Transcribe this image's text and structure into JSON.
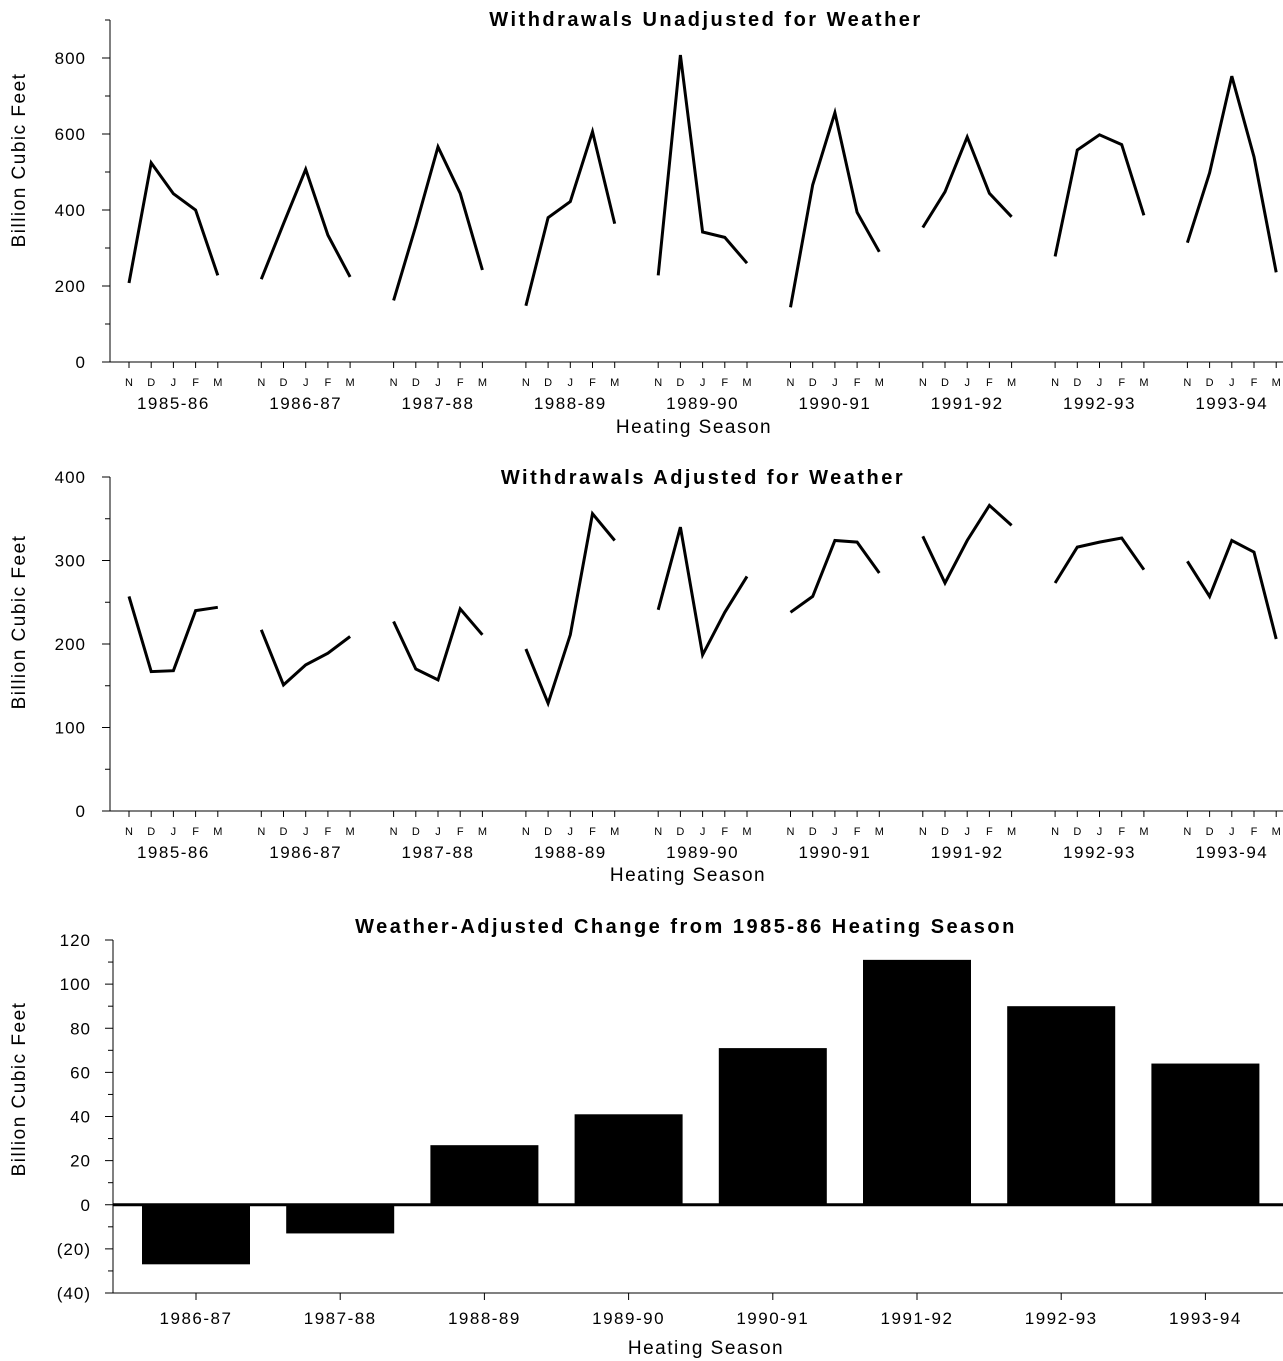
{
  "chart_data": [
    {
      "type": "line",
      "title": "Withdrawals Unadjusted for Weather",
      "xlabel": "Heating Season",
      "ylabel": "Billion Cubic Feet",
      "ylim": [
        0,
        900
      ],
      "yticks": [
        0,
        200,
        400,
        600,
        800
      ],
      "months": [
        "N",
        "D",
        "J",
        "F",
        "M"
      ],
      "seasons": [
        "1985-86",
        "1986-87",
        "1987-88",
        "1988-89",
        "1989-90",
        "1990-91",
        "1991-92",
        "1992-93",
        "1993-94"
      ],
      "series": [
        {
          "season": "1985-86",
          "values": [
            208,
            524,
            443,
            400,
            228
          ]
        },
        {
          "season": "1986-87",
          "values": [
            218,
            364,
            507,
            334,
            224
          ]
        },
        {
          "season": "1987-88",
          "values": [
            162,
            358,
            566,
            444,
            242
          ]
        },
        {
          "season": "1988-89",
          "values": [
            148,
            380,
            422,
            606,
            364
          ]
        },
        {
          "season": "1989-90",
          "values": [
            228,
            808,
            342,
            328,
            260
          ]
        },
        {
          "season": "1990-91",
          "values": [
            144,
            466,
            656,
            394,
            290
          ]
        },
        {
          "season": "1991-92",
          "values": [
            354,
            448,
            592,
            444,
            382
          ]
        },
        {
          "season": "1992-93",
          "values": [
            278,
            558,
            598,
            572,
            386
          ]
        },
        {
          "season": "1993-94",
          "values": [
            314,
            498,
            752,
            540,
            236
          ]
        }
      ]
    },
    {
      "type": "line",
      "title": "Withdrawals Adjusted for Weather",
      "xlabel": "Heating Season",
      "ylabel": "Billion Cubic Feet",
      "ylim": [
        0,
        400
      ],
      "yticks": [
        0,
        100,
        200,
        300,
        400
      ],
      "months": [
        "N",
        "D",
        "J",
        "F",
        "M"
      ],
      "seasons": [
        "1985-86",
        "1986-87",
        "1987-88",
        "1988-89",
        "1989-90",
        "1990-91",
        "1991-92",
        "1992-93",
        "1993-94"
      ],
      "series": [
        {
          "season": "1985-86",
          "values": [
            257,
            167,
            168,
            240,
            244
          ]
        },
        {
          "season": "1986-87",
          "values": [
            217,
            151,
            175,
            189,
            209
          ]
        },
        {
          "season": "1987-88",
          "values": [
            227,
            170,
            157,
            242,
            211
          ]
        },
        {
          "season": "1988-89",
          "values": [
            194,
            129,
            211,
            356,
            324
          ]
        },
        {
          "season": "1989-90",
          "values": [
            241,
            340,
            187,
            238,
            281
          ]
        },
        {
          "season": "1990-91",
          "values": [
            238,
            257,
            324,
            322,
            285
          ]
        },
        {
          "season": "1991-92",
          "values": [
            329,
            273,
            324,
            366,
            342
          ]
        },
        {
          "season": "1992-93",
          "values": [
            273,
            316,
            322,
            327,
            289
          ]
        },
        {
          "season": "1993-94",
          "values": [
            299,
            257,
            324,
            310,
            206
          ]
        }
      ]
    },
    {
      "type": "bar",
      "title": "Weather-Adjusted Change from 1985-86 Heating Season",
      "xlabel": "Heating Season",
      "ylabel": "Billion Cubic Feet",
      "ylim": [
        -40,
        120
      ],
      "yticks": [
        -40,
        -20,
        0,
        20,
        40,
        60,
        80,
        100,
        120
      ],
      "ytick_labels": [
        "(40)",
        "(20)",
        "0",
        "20",
        "40",
        "60",
        "80",
        "100",
        "120"
      ],
      "categories": [
        "1986-87",
        "1987-88",
        "1988-89",
        "1989-90",
        "1990-91",
        "1991-92",
        "1992-93",
        "1993-94"
      ],
      "values": [
        -27,
        -13,
        27,
        41,
        71,
        111,
        90,
        64
      ]
    }
  ]
}
